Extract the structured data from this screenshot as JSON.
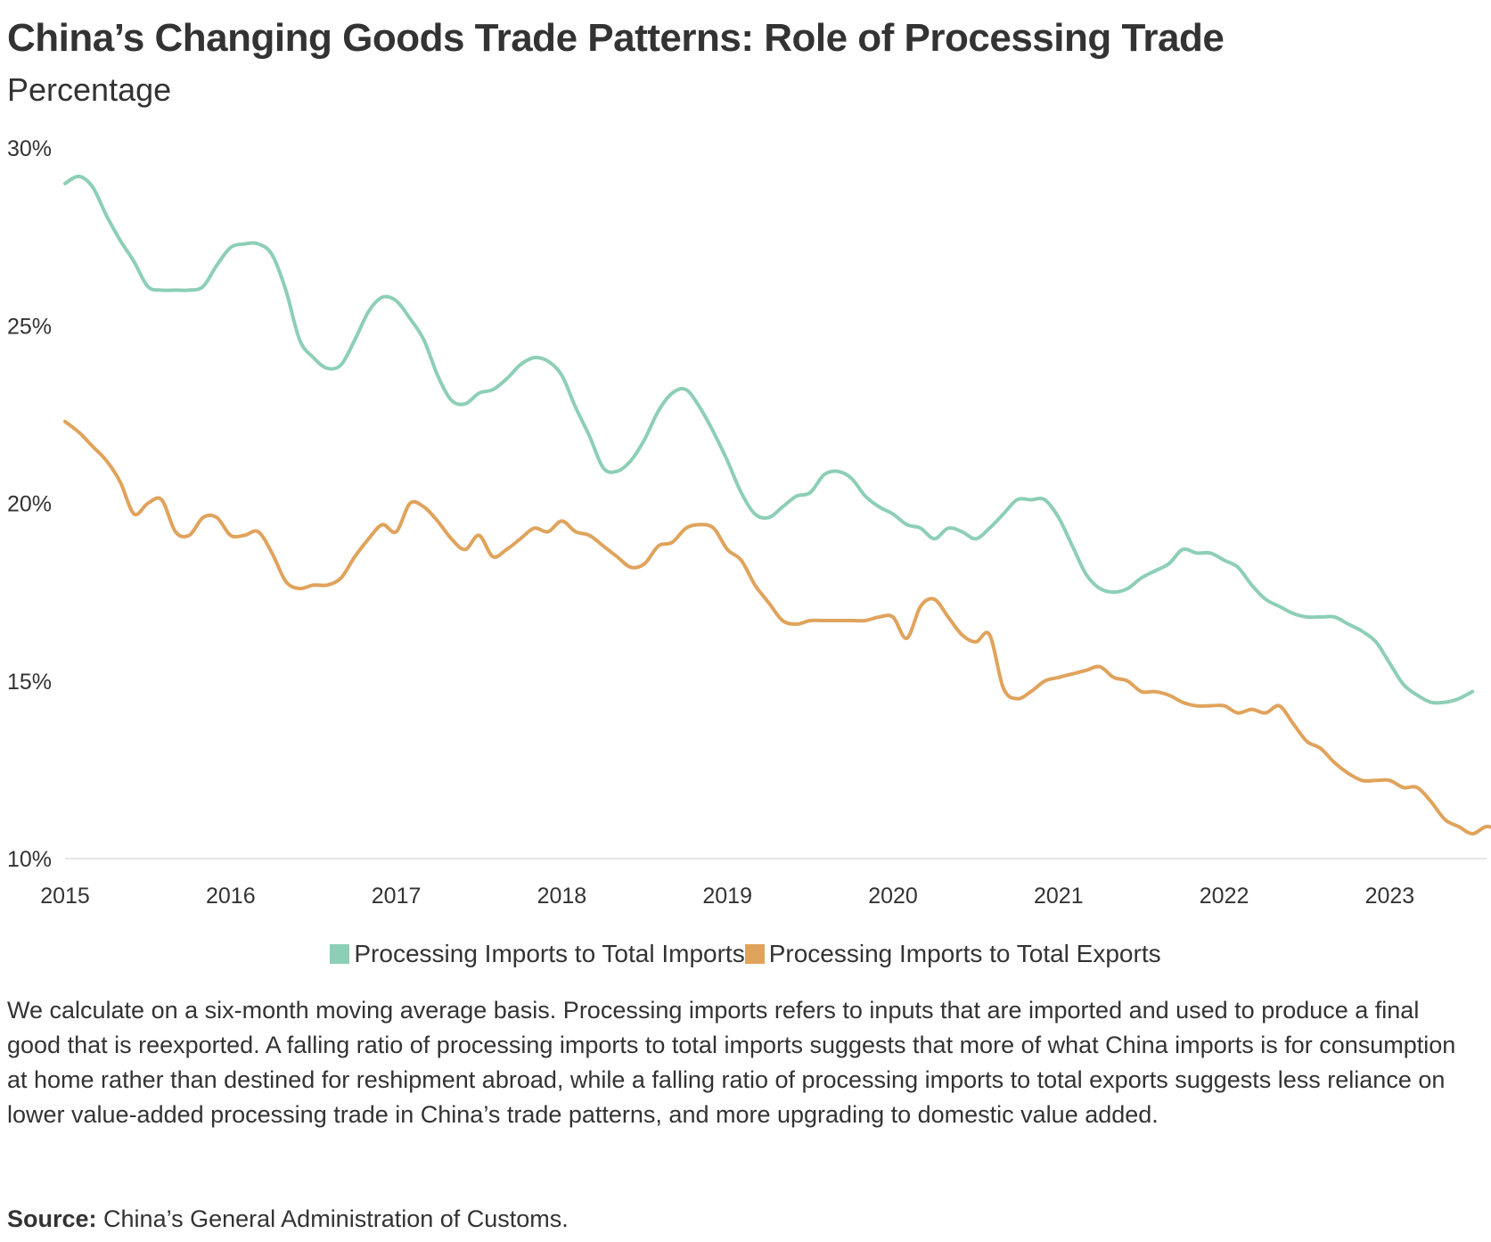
{
  "header": {
    "title": "China’s Changing Goods Trade Patterns: Role of Processing Trade",
    "subtitle": "Percentage"
  },
  "chart_data": {
    "type": "line",
    "title": "China’s Changing Goods Trade Patterns: Role of Processing Trade",
    "subtitle": "Percentage",
    "xlabel": "",
    "ylabel": "Percentage",
    "ylim": [
      10,
      30
    ],
    "xlim": [
      2015.0,
      2023.65
    ],
    "y_ticks": [
      10,
      15,
      20,
      25,
      30
    ],
    "y_tick_labels": [
      "10%",
      "15%",
      "20%",
      "25%",
      "30%"
    ],
    "x_ticks": [
      2015,
      2016,
      2017,
      2018,
      2019,
      2020,
      2021,
      2022,
      2023
    ],
    "x_tick_labels": [
      "2015",
      "2016",
      "2017",
      "2018",
      "2019",
      "2020",
      "2021",
      "2022",
      "2023"
    ],
    "grid": "baseline only",
    "legend_position": "bottom-center",
    "x_start": 2015.0,
    "x_step_years": 0.08333,
    "series": [
      {
        "name": "Processing Imports to Total Imports",
        "color": "#8dcfb6",
        "values": [
          29.0,
          29.2,
          28.9,
          28.1,
          27.4,
          26.8,
          26.1,
          26.0,
          26.0,
          26.0,
          26.1,
          26.7,
          27.2,
          27.3,
          27.3,
          27.0,
          26.0,
          24.6,
          24.1,
          23.8,
          23.9,
          24.6,
          25.4,
          25.8,
          25.7,
          25.2,
          24.6,
          23.6,
          22.9,
          22.8,
          23.1,
          23.2,
          23.5,
          23.9,
          24.1,
          24.0,
          23.6,
          22.7,
          21.9,
          21.0,
          20.9,
          21.2,
          21.8,
          22.6,
          23.1,
          23.2,
          22.7,
          22.0,
          21.2,
          20.3,
          19.7,
          19.6,
          19.9,
          20.2,
          20.3,
          20.8,
          20.9,
          20.7,
          20.2,
          19.9,
          19.7,
          19.4,
          19.3,
          19.0,
          19.3,
          19.2,
          19.0,
          19.3,
          19.7,
          20.1,
          20.1,
          20.1,
          19.6,
          18.8,
          18.0,
          17.6,
          17.5,
          17.6,
          17.9,
          18.1,
          18.3,
          18.7,
          18.6,
          18.6,
          18.4,
          18.2,
          17.7,
          17.3,
          17.1,
          16.9,
          16.8,
          16.8,
          16.8,
          16.6,
          16.4,
          16.1,
          15.5,
          14.9,
          14.6,
          14.4,
          14.4,
          14.5,
          14.7
        ]
      },
      {
        "name": "Processing Imports to Total Exports",
        "color": "#e0a35c",
        "values": [
          22.3,
          22.0,
          21.6,
          21.2,
          20.6,
          19.7,
          20.0,
          20.1,
          19.2,
          19.1,
          19.6,
          19.6,
          19.1,
          19.1,
          19.2,
          18.6,
          17.8,
          17.6,
          17.7,
          17.7,
          17.9,
          18.5,
          19.0,
          19.4,
          19.2,
          20.0,
          19.9,
          19.5,
          19.0,
          18.7,
          19.1,
          18.5,
          18.7,
          19.0,
          19.3,
          19.2,
          19.5,
          19.2,
          19.1,
          18.8,
          18.5,
          18.2,
          18.3,
          18.8,
          18.9,
          19.3,
          19.4,
          19.3,
          18.7,
          18.4,
          17.7,
          17.2,
          16.7,
          16.6,
          16.7,
          16.7,
          16.7,
          16.7,
          16.7,
          16.8,
          16.8,
          16.2,
          17.1,
          17.3,
          16.8,
          16.3,
          16.1,
          16.3,
          14.8,
          14.5,
          14.7,
          15.0,
          15.1,
          15.2,
          15.3,
          15.4,
          15.1,
          15.0,
          14.7,
          14.7,
          14.6,
          14.4,
          14.3,
          14.3,
          14.3,
          14.1,
          14.2,
          14.1,
          14.3,
          13.8,
          13.3,
          13.1,
          12.7,
          12.4,
          12.2,
          12.2,
          12.2,
          12.0,
          12.0,
          11.6,
          11.1,
          10.9,
          10.7,
          10.9,
          10.8
        ]
      }
    ]
  },
  "legend": {
    "items": [
      {
        "label": "Processing Imports to Total Imports",
        "color": "#8dcfb6"
      },
      {
        "label": "Processing Imports to Total Exports",
        "color": "#e0a35c"
      }
    ]
  },
  "note": "We calculate on a six-month moving average basis. Processing imports refers to inputs that are imported and used to produce a final good that is reexported. A falling ratio of processing imports to total imports suggests that more of what China imports is for consumption at home rather than destined for reshipment abroad, while a falling ratio of processing imports to total exports suggests less reliance on lower value-added processing trade in China’s trade patterns, and more upgrading to domestic value added.",
  "source": {
    "label": "Source:",
    "text": "China’s General Administration of Customs."
  }
}
